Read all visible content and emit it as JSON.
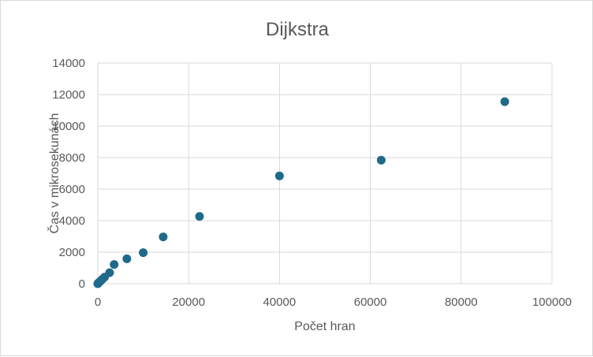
{
  "chart_data": {
    "type": "scatter",
    "title": "Dijkstra",
    "xlabel": "Počet hran",
    "ylabel": "Čas v mikrosekunách",
    "xlim": [
      0,
      100000
    ],
    "ylim": [
      0,
      14000
    ],
    "x_ticks": [
      0,
      20000,
      40000,
      60000,
      80000,
      100000
    ],
    "y_ticks": [
      0,
      2000,
      4000,
      6000,
      8000,
      10000,
      12000,
      14000
    ],
    "grid": true,
    "legend": "none",
    "marker_color": "#1f6a8a",
    "series": [
      {
        "points": [
          [
            0,
            0
          ],
          [
            100,
            40
          ],
          [
            300,
            90
          ],
          [
            600,
            170
          ],
          [
            1000,
            280
          ],
          [
            1500,
            420
          ],
          [
            2600,
            700
          ],
          [
            3600,
            1220
          ],
          [
            6400,
            1580
          ],
          [
            10000,
            1970
          ],
          [
            14400,
            2970
          ],
          [
            22400,
            4270
          ],
          [
            40000,
            6840
          ],
          [
            62400,
            7840
          ],
          [
            89600,
            11550
          ]
        ]
      }
    ]
  }
}
